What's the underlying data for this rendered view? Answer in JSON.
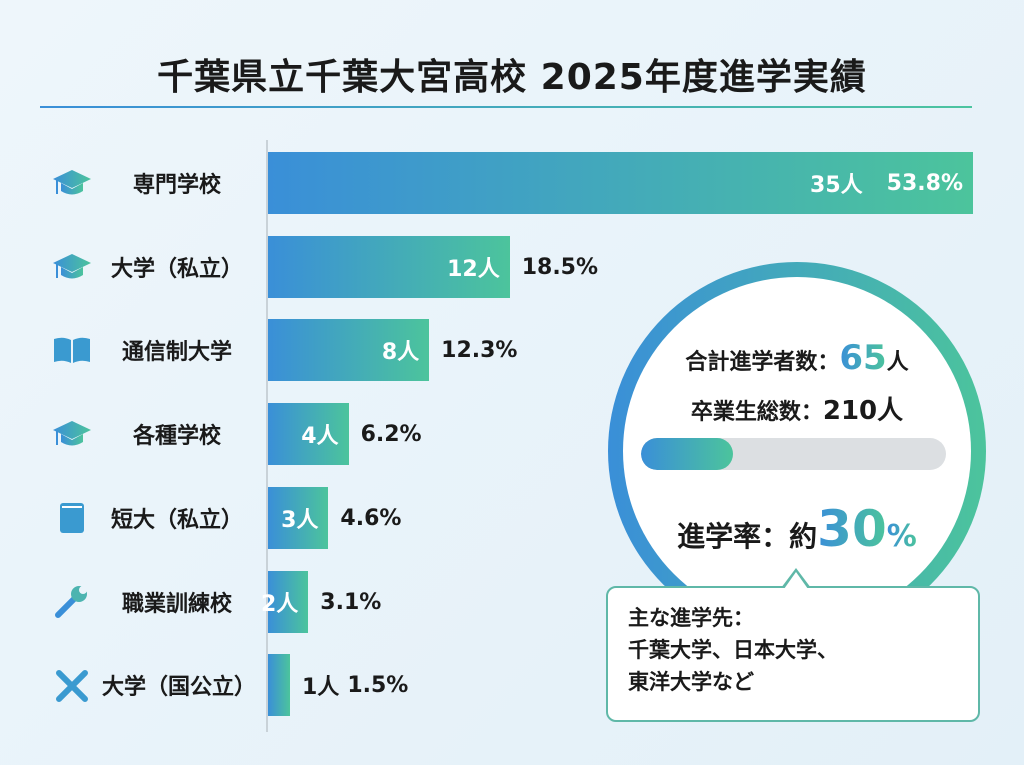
{
  "title": "千葉県立千葉大宮高校 2025年度進学実績",
  "colors": {
    "gradient_start": "#3a8fd8",
    "gradient_end": "#4cc49c",
    "track": "#dcdfe2"
  },
  "chart_data": {
    "type": "bar",
    "orientation": "horizontal",
    "title": "千葉県立千葉大宮高校 2025年度進学実績",
    "categories": [
      "専門学校",
      "大学（私立）",
      "通信制大学",
      "各種学校",
      "短大（私立）",
      "職業訓練校",
      "大学（国公立）"
    ],
    "icons": [
      "graduation-cap-icon",
      "graduation-cap-icon",
      "open-book-icon",
      "graduation-cap-icon",
      "book-icon",
      "wrench-icon",
      "tools-icon"
    ],
    "values": [
      35,
      12,
      8,
      4,
      3,
      2,
      1
    ],
    "count_labels": [
      "35人",
      "12人",
      "8人",
      "4人",
      "3人",
      "2人",
      "1人"
    ],
    "percent_labels": [
      "53.8%",
      "18.5%",
      "12.3%",
      "6.2%",
      "4.6%",
      "3.1%",
      "1.5%"
    ]
  },
  "summary": {
    "total_label": "合計進学者数：",
    "total_value": "65",
    "total_unit": "人",
    "grads_label": "卒業生総数：",
    "grads_value": "210人",
    "rate_progress": 0.3,
    "rate_label": "進学率：約",
    "rate_value": "30",
    "rate_unit": "%"
  },
  "callout": {
    "line1": "主な進学先：",
    "line2": "千葉大学、日本大学、",
    "line3": "東洋大学など"
  }
}
